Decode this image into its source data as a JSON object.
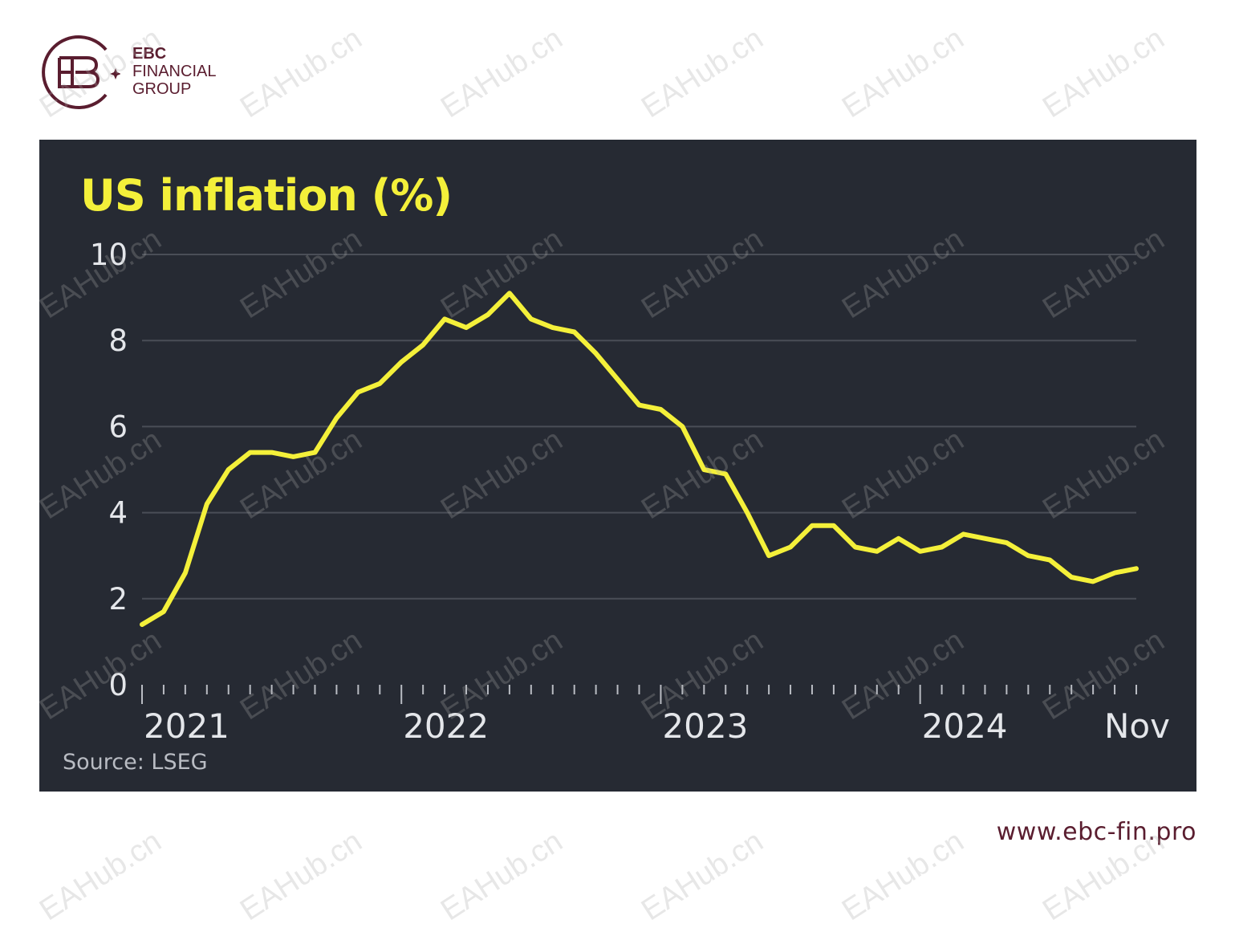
{
  "brand": {
    "name": "EBC",
    "line1": "FINANCIAL",
    "line2": "GROUP",
    "color": "#5a1d2f"
  },
  "website": "www.ebc-fin.pro",
  "watermark": "EAHub.cn",
  "colors": {
    "panel_bg": "#262a33",
    "line": "#f4f03a",
    "title": "#f4f03a",
    "grid": "#4a4e57",
    "axis_text": "#e4e6ea"
  },
  "chart_data": {
    "type": "line",
    "title": "US inflation (%)",
    "source": "Source: LSEG",
    "xlabel": "",
    "ylabel": "",
    "ylim": [
      0,
      10
    ],
    "yticks": [
      "0",
      "2",
      "4",
      "6",
      "8",
      "10"
    ],
    "xtick_labels": [
      "2021",
      "2022",
      "2023",
      "2024",
      "Nov"
    ],
    "grid": true,
    "series": [
      {
        "x": [
          "2021-01",
          "2021-02",
          "2021-03",
          "2021-04",
          "2021-05",
          "2021-06",
          "2021-07",
          "2021-08",
          "2021-09",
          "2021-10",
          "2021-11",
          "2021-12",
          "2022-01",
          "2022-02",
          "2022-03",
          "2022-04",
          "2022-05",
          "2022-06",
          "2022-07",
          "2022-08",
          "2022-09",
          "2022-10",
          "2022-11",
          "2022-12",
          "2023-01",
          "2023-02",
          "2023-03",
          "2023-04",
          "2023-05",
          "2023-06",
          "2023-07",
          "2023-08",
          "2023-09",
          "2023-10",
          "2023-11",
          "2023-12",
          "2024-01",
          "2024-02",
          "2024-03",
          "2024-04",
          "2024-05",
          "2024-06",
          "2024-07",
          "2024-08",
          "2024-09",
          "2024-10",
          "2024-11"
        ],
        "values": [
          1.4,
          1.7,
          2.6,
          4.2,
          5.0,
          5.4,
          5.4,
          5.3,
          5.4,
          6.2,
          6.8,
          7.0,
          7.5,
          7.9,
          8.5,
          8.3,
          8.6,
          9.1,
          8.5,
          8.3,
          8.2,
          7.7,
          7.1,
          6.5,
          6.4,
          6.0,
          5.0,
          4.9,
          4.0,
          3.0,
          3.2,
          3.7,
          3.7,
          3.2,
          3.1,
          3.4,
          3.1,
          3.2,
          3.5,
          3.4,
          3.3,
          3.0,
          2.9,
          2.5,
          2.4,
          2.6,
          2.7
        ]
      }
    ]
  }
}
